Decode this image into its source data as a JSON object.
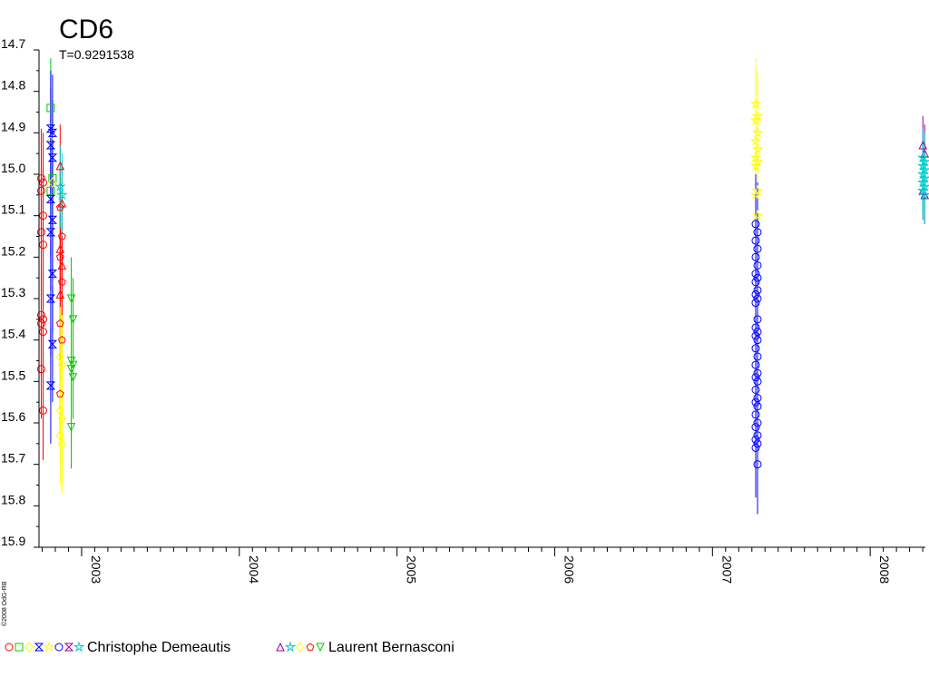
{
  "chart_data": {
    "type": "scatter",
    "title": "CD6",
    "subtitle": "T=0.9291538",
    "copyright": "©2008 OdG-RB",
    "ylim": [
      14.7,
      15.9
    ],
    "y_inverted": true,
    "xlim": [
      2002.73,
      2008.35
    ],
    "y_ticks": [
      "14.7",
      "14.8",
      "14.9",
      "15.0",
      "15.1",
      "15.2",
      "15.3",
      "15.4",
      "15.5",
      "15.6",
      "15.7",
      "15.8",
      "15.9"
    ],
    "x_ticks": [
      "2003",
      "2004",
      "2005",
      "2006",
      "2007",
      "2008"
    ],
    "error_bars": true,
    "observers": [
      {
        "name": "Christophe Demeautis",
        "legend_symbols": [
          {
            "shape": "circle",
            "color": "#ff0000"
          },
          {
            "shape": "square",
            "color": "#00cc00"
          },
          {
            "shape": "diamond",
            "color": "#ffff00"
          },
          {
            "shape": "hourglass",
            "color": "#0000ff"
          },
          {
            "shape": "star",
            "color": "#ffff00"
          },
          {
            "shape": "circle",
            "color": "#0000ff"
          },
          {
            "shape": "hourglass",
            "color": "#990099"
          },
          {
            "shape": "star",
            "color": "#00cccc"
          }
        ]
      },
      {
        "name": "Laurent Bernasconi",
        "legend_symbols": [
          {
            "shape": "triangle-up",
            "color": "#990099"
          },
          {
            "shape": "star",
            "color": "#00cccc"
          },
          {
            "shape": "diamond",
            "color": "#ffff00"
          },
          {
            "shape": "pentagon",
            "color": "#ff0000"
          },
          {
            "shape": "triangle-down",
            "color": "#00cc00"
          }
        ]
      }
    ],
    "series": [
      {
        "shape": "circle",
        "color": "#ff0000",
        "x": [
          2002.75,
          2002.75,
          2002.75,
          2002.75,
          2002.75,
          2002.75,
          2002.75,
          2002.75,
          2002.75,
          2002.75,
          2002.75,
          2002.75
        ],
        "y": [
          15.01,
          15.02,
          15.04,
          15.1,
          15.14,
          15.17,
          15.34,
          15.35,
          15.36,
          15.38,
          15.47,
          15.57
        ],
        "err": [
          0.12,
          0.12,
          0.12,
          0.12,
          0.12,
          0.12,
          0.12,
          0.12,
          0.12,
          0.12,
          0.12,
          0.12
        ]
      },
      {
        "shape": "square",
        "color": "#00cc00",
        "x": [
          2002.81,
          2002.81,
          2002.81
        ],
        "y": [
          14.84,
          15.01,
          15.04
        ],
        "err": [
          0.12,
          0.1,
          0.1
        ]
      },
      {
        "shape": "diamond",
        "color": "#ffff00",
        "x": [
          2002.81,
          2002.81
        ],
        "y": [
          14.92,
          15.02
        ],
        "err": [
          0.1,
          0.1
        ]
      },
      {
        "shape": "hourglass",
        "color": "#0000ff",
        "x": [
          2002.81,
          2002.81,
          2002.81,
          2002.81,
          2002.81,
          2002.81,
          2002.81,
          2002.81,
          2002.81,
          2002.81,
          2002.81
        ],
        "y": [
          14.89,
          14.9,
          14.93,
          14.96,
          15.06,
          15.11,
          15.14,
          15.24,
          15.3,
          15.41,
          15.51
        ],
        "err": [
          0.14,
          0.14,
          0.14,
          0.14,
          0.14,
          0.14,
          0.14,
          0.14,
          0.14,
          0.14,
          0.14
        ]
      },
      {
        "shape": "triangle-up",
        "color": "#ff0000",
        "x": [
          2002.87,
          2002.87,
          2002.87,
          2002.87,
          2002.87
        ],
        "y": [
          14.98,
          15.07,
          15.18,
          15.22,
          15.29
        ],
        "err": [
          0.1,
          0.1,
          0.1,
          0.1,
          0.1
        ]
      },
      {
        "shape": "pentagon",
        "color": "#ff0000",
        "x": [
          2002.87,
          2002.87,
          2002.87,
          2002.87,
          2002.87,
          2002.87,
          2002.87
        ],
        "y": [
          15.08,
          15.15,
          15.2,
          15.26,
          15.36,
          15.4,
          15.53
        ],
        "err": [
          0.1,
          0.1,
          0.1,
          0.1,
          0.1,
          0.1,
          0.1
        ]
      },
      {
        "shape": "star",
        "color": "#00cccc",
        "x": [
          2002.87,
          2002.87
        ],
        "y": [
          15.03,
          15.05
        ],
        "err": [
          0.1,
          0.1
        ]
      },
      {
        "shape": "diamond",
        "color": "#ffff00",
        "x": [
          2002.87,
          2002.87,
          2002.87,
          2002.87,
          2002.87,
          2002.87
        ],
        "y": [
          15.44,
          15.46,
          15.57,
          15.59,
          15.63,
          15.65
        ],
        "err": [
          0.12,
          0.12,
          0.12,
          0.12,
          0.12,
          0.12
        ]
      },
      {
        "shape": "triangle-down",
        "color": "#00cc00",
        "x": [
          2002.94,
          2002.94,
          2002.94,
          2002.94,
          2002.94,
          2002.94,
          2002.94
        ],
        "y": [
          15.3,
          15.35,
          15.45,
          15.46,
          15.47,
          15.49,
          15.61
        ],
        "err": [
          0.1,
          0.1,
          0.1,
          0.1,
          0.1,
          0.1,
          0.1
        ]
      },
      {
        "shape": "star",
        "color": "#ffff00",
        "x": [
          2007.28,
          2007.28,
          2007.28,
          2007.28,
          2007.28,
          2007.28,
          2007.28,
          2007.28,
          2007.28,
          2007.28,
          2007.28,
          2007.28
        ],
        "y": [
          14.83,
          14.86,
          14.87,
          14.9,
          14.92,
          14.94,
          14.96,
          14.97,
          14.98,
          15.04,
          15.05,
          15.1
        ],
        "err": [
          0.11,
          0.11,
          0.11,
          0.11,
          0.11,
          0.11,
          0.11,
          0.11,
          0.11,
          0.11,
          0.11,
          0.11
        ]
      },
      {
        "shape": "circle",
        "color": "#0000ff",
        "x": [
          2007.28,
          2007.28,
          2007.28,
          2007.28,
          2007.28,
          2007.28,
          2007.28,
          2007.28,
          2007.28,
          2007.28,
          2007.28,
          2007.28,
          2007.28,
          2007.28,
          2007.28,
          2007.28,
          2007.28,
          2007.28,
          2007.28,
          2007.28,
          2007.28,
          2007.28,
          2007.28,
          2007.28,
          2007.28,
          2007.28,
          2007.28,
          2007.28,
          2007.28,
          2007.28,
          2007.28,
          2007.28,
          2007.28,
          2007.28,
          2007.28,
          2007.28
        ],
        "y": [
          15.12,
          15.14,
          15.16,
          15.18,
          15.2,
          15.22,
          15.24,
          15.25,
          15.26,
          15.28,
          15.29,
          15.3,
          15.31,
          15.35,
          15.37,
          15.38,
          15.39,
          15.4,
          15.42,
          15.44,
          15.46,
          15.48,
          15.49,
          15.5,
          15.52,
          15.54,
          15.55,
          15.56,
          15.58,
          15.6,
          15.61,
          15.63,
          15.64,
          15.65,
          15.66,
          15.7
        ],
        "err": [
          0.12,
          0.12,
          0.12,
          0.12,
          0.12,
          0.12,
          0.12,
          0.12,
          0.12,
          0.12,
          0.12,
          0.12,
          0.12,
          0.12,
          0.12,
          0.12,
          0.12,
          0.12,
          0.12,
          0.12,
          0.12,
          0.12,
          0.12,
          0.12,
          0.12,
          0.12,
          0.12,
          0.12,
          0.12,
          0.12,
          0.12,
          0.12,
          0.12,
          0.12,
          0.12,
          0.12
        ]
      },
      {
        "shape": "triangle-up",
        "color": "#990099",
        "x": [
          2008.34,
          2008.34,
          2008.34,
          2008.34
        ],
        "y": [
          14.93,
          14.95,
          15.04,
          15.05
        ],
        "err": [
          0.07,
          0.07,
          0.07,
          0.07
        ]
      },
      {
        "shape": "star",
        "color": "#00cccc",
        "x": [
          2008.34,
          2008.34,
          2008.34,
          2008.34,
          2008.34,
          2008.34,
          2008.34,
          2008.34,
          2008.34,
          2008.34
        ],
        "y": [
          14.96,
          14.97,
          14.98,
          14.99,
          15.0,
          15.01,
          15.02,
          15.03,
          15.04,
          15.05
        ],
        "err": [
          0.07,
          0.07,
          0.07,
          0.07,
          0.07,
          0.07,
          0.07,
          0.07,
          0.07,
          0.07
        ]
      }
    ]
  }
}
